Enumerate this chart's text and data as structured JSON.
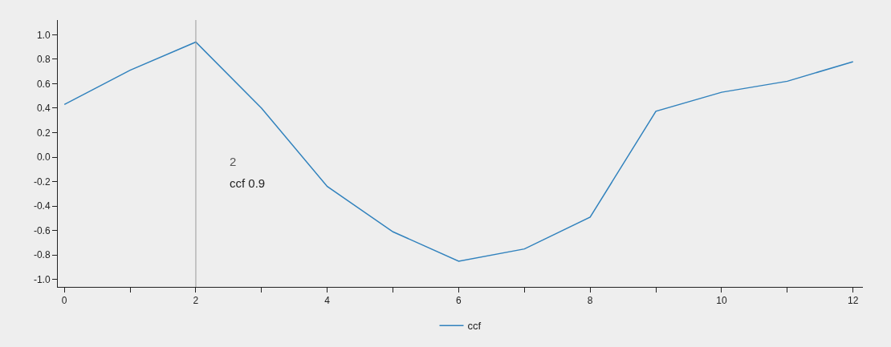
{
  "chart_data": {
    "type": "line",
    "x": [
      0,
      1,
      2,
      3,
      4,
      5,
      6,
      7,
      8,
      9,
      10,
      11,
      12
    ],
    "series": [
      {
        "name": "ccf",
        "color": "#3182bd",
        "values": [
          0.43,
          0.71,
          0.94,
          0.4,
          -0.24,
          -0.61,
          -0.85,
          -0.75,
          -0.49,
          0.375,
          0.53,
          0.62,
          0.78
        ]
      }
    ],
    "xlim": [
      -0.1,
      12.15
    ],
    "xticks": [
      0,
      {
        "value": 1,
        "label": null
      },
      2,
      {
        "value": 3,
        "label": null
      },
      4,
      {
        "value": 5,
        "label": null
      },
      6,
      {
        "value": 7,
        "label": null
      },
      8,
      {
        "value": 9,
        "label": null
      },
      10,
      {
        "value": 11,
        "label": null
      },
      12
    ],
    "ylim": [
      -1.06,
      1.12
    ],
    "yticks": [
      {
        "value": -1,
        "label": "-1.0"
      },
      {
        "value": -0.8,
        "label": "-0.8"
      },
      {
        "value": -0.6,
        "label": "-0.6"
      },
      {
        "value": -0.4,
        "label": "-0.4"
      },
      {
        "value": -0.2,
        "label": "-0.2"
      },
      {
        "value": 0,
        "label": "0.0"
      },
      {
        "value": 0.2,
        "label": "0.2"
      },
      {
        "value": 0.4,
        "label": "0.4"
      },
      {
        "value": 0.6,
        "label": "0.6"
      },
      {
        "value": 0.8,
        "label": "0.8"
      },
      {
        "value": 1,
        "label": "1.0"
      }
    ],
    "ref_lines": [
      {
        "axis": "x",
        "value": 2,
        "color": "#999999"
      }
    ],
    "annotations": [
      "2",
      "ccf 0.9"
    ],
    "legend": "bottom",
    "grid": false,
    "marker": "none",
    "line_style": "solid"
  }
}
